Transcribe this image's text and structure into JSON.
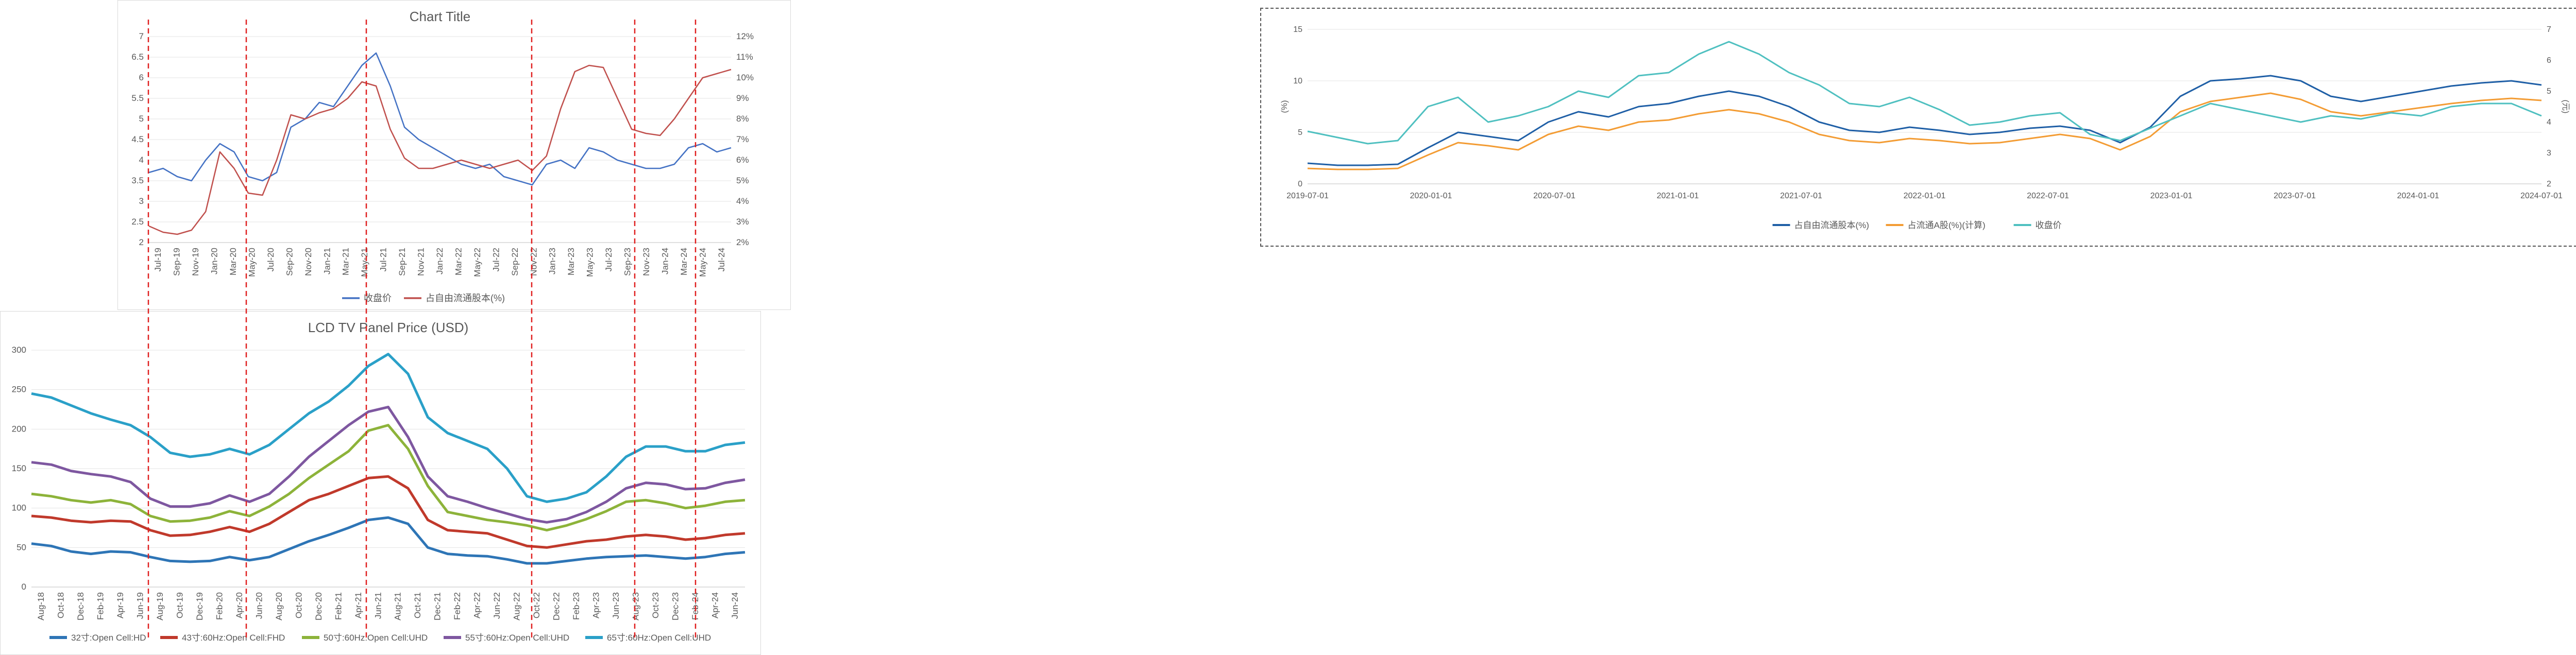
{
  "chart_data": [
    {
      "id": "top-left",
      "type": "line",
      "title": "Chart Title",
      "x_ticks": [
        "Jul-19",
        "Sep-19",
        "Nov-19",
        "Jan-20",
        "Mar-20",
        "May-20",
        "Jul-20",
        "Sep-20",
        "Nov-20",
        "Jan-21",
        "Mar-21",
        "May-21",
        "Jul-21",
        "Sep-21",
        "Nov-21",
        "Jan-22",
        "Mar-22",
        "May-22",
        "Jul-22",
        "Sep-22",
        "Nov-22",
        "Jan-23",
        "Mar-23",
        "May-23",
        "Jul-23",
        "Sep-23",
        "Nov-23",
        "Jan-24",
        "Mar-24",
        "May-24",
        "Jul-24"
      ],
      "y_left": {
        "ticks": [
          "2",
          "2.5",
          "3",
          "3.5",
          "4",
          "4.5",
          "5",
          "5.5",
          "6",
          "6.5",
          "7"
        ],
        "range": [
          2,
          7
        ]
      },
      "y_right": {
        "ticks": [
          "2%",
          "3%",
          "4%",
          "5%",
          "6%",
          "7%",
          "8%",
          "9%",
          "10%",
          "11%",
          "12%"
        ],
        "range": [
          2,
          12
        ]
      },
      "series": [
        {
          "name": "收盘价",
          "axis": "left",
          "color": "#4472c4",
          "values": [
            3.7,
            3.8,
            3.6,
            3.5,
            4.0,
            4.4,
            4.2,
            3.6,
            3.5,
            3.7,
            4.8,
            5.0,
            5.4,
            5.3,
            5.8,
            6.3,
            6.6,
            5.8,
            4.8,
            4.5,
            4.3,
            4.1,
            3.9,
            3.8,
            3.9,
            3.6,
            3.5,
            3.4,
            3.9,
            4.0,
            3.8,
            4.3,
            4.2,
            4.0,
            3.9,
            3.8,
            3.8,
            3.9,
            4.3,
            4.4,
            4.2,
            4.3
          ]
        },
        {
          "name": "占自由流通股本(%)",
          "axis": "right",
          "color": "#c0504d",
          "values": [
            2.8,
            2.5,
            2.4,
            2.6,
            3.5,
            6.4,
            5.6,
            4.4,
            4.3,
            6.0,
            8.2,
            8.0,
            8.3,
            8.5,
            9.0,
            9.8,
            9.6,
            7.5,
            6.1,
            5.6,
            5.6,
            5.8,
            6.0,
            5.8,
            5.6,
            5.8,
            6.0,
            5.5,
            6.2,
            8.5,
            10.3,
            10.6,
            10.5,
            9.0,
            7.5,
            7.3,
            7.2,
            8.0,
            9.0,
            10.0,
            10.2,
            10.4
          ]
        }
      ],
      "legend": "bottom"
    },
    {
      "id": "bottom-left",
      "type": "line",
      "title": "LCD TV Panel Price (USD)",
      "x_ticks": [
        "Aug-18",
        "Oct-18",
        "Dec-18",
        "Feb-19",
        "Apr-19",
        "Jun-19",
        "Aug-19",
        "Oct-19",
        "Dec-19",
        "Feb-20",
        "Apr-20",
        "Jun-20",
        "Aug-20",
        "Oct-20",
        "Dec-20",
        "Feb-21",
        "Apr-21",
        "Jun-21",
        "Aug-21",
        "Oct-21",
        "Dec-21",
        "Feb-22",
        "Apr-22",
        "Jun-22",
        "Aug-22",
        "Oct-22",
        "Dec-22",
        "Feb-23",
        "Apr-23",
        "Jun-23",
        "Aug-23",
        "Oct-23",
        "Dec-23",
        "Feb-24",
        "Apr-24",
        "Jun-24"
      ],
      "y": {
        "ticks": [
          "0",
          "50",
          "100",
          "150",
          "200",
          "250",
          "300"
        ],
        "range": [
          0,
          300
        ]
      },
      "series": [
        {
          "name": "32寸:Open Cell:HD",
          "color": "#2e75b6",
          "values": [
            55,
            52,
            45,
            42,
            45,
            44,
            38,
            33,
            32,
            33,
            38,
            34,
            38,
            48,
            58,
            66,
            75,
            85,
            88,
            80,
            50,
            42,
            40,
            39,
            35,
            30,
            30,
            33,
            36,
            38,
            39,
            40,
            38,
            36,
            38,
            42,
            44
          ]
        },
        {
          "name": "43寸:60Hz:Open Cell:FHD",
          "color": "#c0392b",
          "values": [
            90,
            88,
            84,
            82,
            84,
            83,
            72,
            65,
            66,
            70,
            76,
            70,
            80,
            95,
            110,
            118,
            128,
            138,
            140,
            125,
            85,
            72,
            70,
            68,
            60,
            52,
            50,
            54,
            58,
            60,
            64,
            66,
            64,
            60,
            62,
            66,
            68
          ]
        },
        {
          "name": "50寸:60Hz:Open Cell:UHD",
          "color": "#8db33a",
          "values": [
            118,
            115,
            110,
            107,
            110,
            105,
            90,
            83,
            84,
            88,
            96,
            90,
            102,
            118,
            138,
            155,
            172,
            198,
            205,
            175,
            128,
            95,
            90,
            85,
            82,
            78,
            72,
            78,
            86,
            96,
            108,
            110,
            106,
            100,
            103,
            108,
            110
          ]
        },
        {
          "name": "55寸:60Hz:Open Cell:UHD",
          "color": "#7e57a0",
          "values": [
            158,
            155,
            147,
            143,
            140,
            133,
            112,
            102,
            102,
            106,
            116,
            108,
            118,
            140,
            165,
            185,
            205,
            222,
            228,
            190,
            140,
            115,
            108,
            100,
            93,
            86,
            82,
            86,
            95,
            108,
            125,
            132,
            130,
            124,
            125,
            132,
            136
          ]
        },
        {
          "name": "65寸:60Hz:Open Cell:UHD",
          "color": "#2aa0c8",
          "values": [
            245,
            240,
            230,
            220,
            212,
            205,
            190,
            170,
            165,
            168,
            175,
            168,
            180,
            200,
            220,
            235,
            255,
            280,
            295,
            270,
            215,
            195,
            185,
            175,
            150,
            115,
            108,
            112,
            120,
            140,
            165,
            178,
            178,
            172,
            172,
            180,
            183
          ]
        }
      ],
      "legend": "bottom"
    },
    {
      "id": "right",
      "type": "line",
      "title": "",
      "x_ticks": [
        "2019-07-01",
        "2020-01-01",
        "2020-07-01",
        "2021-01-01",
        "2021-07-01",
        "2022-01-01",
        "2022-07-01",
        "2023-01-01",
        "2023-07-01",
        "2024-01-01",
        "2024-07-01"
      ],
      "y_left": {
        "ticks": [
          "0",
          "5",
          "10",
          "15"
        ],
        "range": [
          0,
          15
        ],
        "label": "(%)"
      },
      "y_right": {
        "ticks": [
          "2",
          "3",
          "4",
          "5",
          "6",
          "7"
        ],
        "range": [
          2,
          7
        ],
        "label": "(元)"
      },
      "series": [
        {
          "name": "占自由流通股本(%)",
          "axis": "left",
          "color": "#1f5fa6",
          "values": [
            2.0,
            1.8,
            1.8,
            1.9,
            3.5,
            5.0,
            4.6,
            4.2,
            6.0,
            7.0,
            6.5,
            7.5,
            7.8,
            8.5,
            9.0,
            8.5,
            7.5,
            6.0,
            5.2,
            5.0,
            5.5,
            5.2,
            4.8,
            5.0,
            5.4,
            5.6,
            5.2,
            4.0,
            5.5,
            8.5,
            10.0,
            10.2,
            10.5,
            10.0,
            8.5,
            8.0,
            8.5,
            9.0,
            9.5,
            9.8,
            10.0,
            9.6
          ]
        },
        {
          "name": "占流通A股(%)(计算)",
          "axis": "left",
          "color": "#f39c34",
          "values": [
            1.5,
            1.4,
            1.4,
            1.5,
            2.8,
            4.0,
            3.7,
            3.3,
            4.8,
            5.6,
            5.2,
            6.0,
            6.2,
            6.8,
            7.2,
            6.8,
            6.0,
            4.8,
            4.2,
            4.0,
            4.4,
            4.2,
            3.9,
            4.0,
            4.4,
            4.8,
            4.4,
            3.3,
            4.6,
            7.0,
            8.0,
            8.4,
            8.8,
            8.2,
            7.0,
            6.6,
            7.0,
            7.4,
            7.8,
            8.1,
            8.3,
            8.1
          ]
        },
        {
          "name": "收盘价",
          "axis": "right",
          "color": "#4fc0c0",
          "values": [
            3.7,
            3.5,
            3.3,
            3.4,
            4.5,
            4.8,
            4.0,
            4.2,
            4.5,
            5.0,
            4.8,
            5.5,
            5.6,
            6.2,
            6.6,
            6.2,
            5.6,
            5.2,
            4.6,
            4.5,
            4.8,
            4.4,
            3.9,
            4.0,
            4.2,
            4.3,
            3.6,
            3.4,
            3.8,
            4.2,
            4.6,
            4.4,
            4.2,
            4.0,
            4.2,
            4.1,
            4.3,
            4.2,
            4.5,
            4.6,
            4.6,
            4.2
          ]
        }
      ],
      "legend": "bottom"
    }
  ]
}
